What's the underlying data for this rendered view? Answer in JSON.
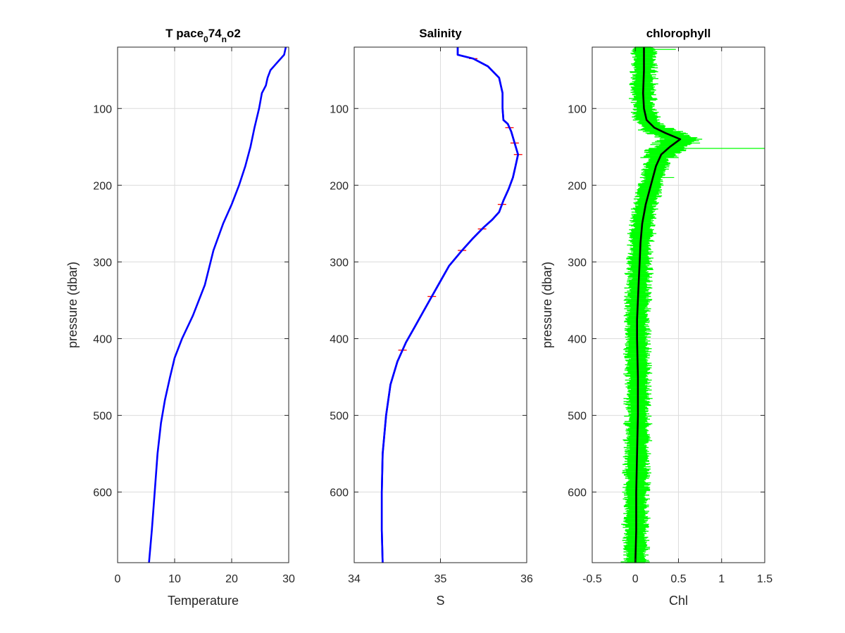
{
  "chart_data": [
    {
      "type": "line",
      "title_parts": [
        "T pace",
        "0",
        "74",
        "n",
        "o2"
      ],
      "xlabel": "Temperature",
      "ylabel": "pressure (dbar)",
      "xlim": [
        0,
        30
      ],
      "ylim": [
        20,
        692
      ],
      "y_reversed": true,
      "grid": true,
      "xticks": [
        0,
        10,
        20,
        30
      ],
      "yticks": [
        100,
        200,
        300,
        400,
        500,
        600
      ],
      "series": [
        {
          "color": "#0000ff",
          "points": [
            [
              29.5,
              20
            ],
            [
              29.2,
              30
            ],
            [
              28.0,
              40
            ],
            [
              26.8,
              50
            ],
            [
              26.3,
              60
            ],
            [
              26.0,
              70
            ],
            [
              25.3,
              80
            ],
            [
              24.8,
              100
            ],
            [
              24.0,
              125
            ],
            [
              23.3,
              150
            ],
            [
              22.4,
              175
            ],
            [
              21.3,
              200
            ],
            [
              20.0,
              225
            ],
            [
              18.5,
              250
            ],
            [
              16.8,
              285
            ],
            [
              15.3,
              330
            ],
            [
              13.2,
              370
            ],
            [
              11.3,
              400
            ],
            [
              10.0,
              425
            ],
            [
              9.2,
              450
            ],
            [
              8.3,
              480
            ],
            [
              7.6,
              510
            ],
            [
              7.0,
              550
            ],
            [
              6.5,
              600
            ],
            [
              6.0,
              650
            ],
            [
              5.5,
              692
            ]
          ]
        }
      ]
    },
    {
      "type": "line",
      "title": "Salinity",
      "xlabel": "S",
      "xlim": [
        34,
        36
      ],
      "ylim": [
        20,
        692
      ],
      "y_reversed": true,
      "grid": true,
      "xticks": [
        34,
        35,
        36
      ],
      "yticks": [
        100,
        200,
        300,
        400,
        500,
        600
      ],
      "series": [
        {
          "color": "#ff0000",
          "points": [
            [
              35.2,
              20
            ],
            [
              35.2,
              30
            ],
            [
              35.38,
              35
            ],
            [
              35.55,
              45
            ],
            [
              35.68,
              60
            ],
            [
              35.72,
              80
            ],
            [
              35.72,
              100
            ],
            [
              35.73,
              115
            ],
            [
              35.78,
              120
            ],
            [
              35.82,
              130
            ],
            [
              35.86,
              145
            ],
            [
              35.9,
              160
            ],
            [
              35.87,
              175
            ],
            [
              35.84,
              190
            ],
            [
              35.79,
              205
            ],
            [
              35.73,
              220
            ],
            [
              35.68,
              235
            ],
            [
              35.6,
              245
            ],
            [
              35.5,
              255
            ],
            [
              35.37,
              270
            ],
            [
              35.25,
              285
            ],
            [
              35.1,
              305
            ],
            [
              35.0,
              325
            ],
            [
              34.9,
              345
            ],
            [
              34.8,
              365
            ],
            [
              34.7,
              385
            ],
            [
              34.6,
              405
            ],
            [
              34.5,
              430
            ],
            [
              34.42,
              460
            ],
            [
              34.37,
              500
            ],
            [
              34.33,
              550
            ],
            [
              34.32,
              600
            ],
            [
              34.32,
              650
            ],
            [
              34.33,
              692
            ]
          ]
        },
        {
          "color": "#0000ff",
          "points": [
            [
              35.2,
              20
            ],
            [
              35.2,
              30
            ],
            [
              35.38,
              35
            ],
            [
              35.55,
              45
            ],
            [
              35.68,
              60
            ],
            [
              35.72,
              80
            ],
            [
              35.72,
              100
            ],
            [
              35.73,
              115
            ],
            [
              35.78,
              120
            ],
            [
              35.82,
              130
            ],
            [
              35.86,
              145
            ],
            [
              35.9,
              160
            ],
            [
              35.87,
              175
            ],
            [
              35.84,
              190
            ],
            [
              35.79,
              205
            ],
            [
              35.73,
              220
            ],
            [
              35.68,
              235
            ],
            [
              35.6,
              245
            ],
            [
              35.5,
              255
            ],
            [
              35.37,
              270
            ],
            [
              35.25,
              285
            ],
            [
              35.1,
              305
            ],
            [
              35.0,
              325
            ],
            [
              34.9,
              345
            ],
            [
              34.8,
              365
            ],
            [
              34.7,
              385
            ],
            [
              34.6,
              405
            ],
            [
              34.5,
              430
            ],
            [
              34.42,
              460
            ],
            [
              34.37,
              500
            ],
            [
              34.33,
              550
            ],
            [
              34.32,
              600
            ],
            [
              34.32,
              650
            ],
            [
              34.33,
              692
            ]
          ]
        }
      ]
    },
    {
      "type": "line",
      "title": "chlorophyll",
      "xlabel": "Chl",
      "ylabel": "pressure (dbar)",
      "xlim": [
        -0.5,
        1.5
      ],
      "ylim": [
        20,
        692
      ],
      "y_reversed": true,
      "grid": true,
      "xticks": [
        -0.5,
        0,
        0.5,
        1,
        1.5
      ],
      "yticks": [
        100,
        200,
        300,
        400,
        500,
        600
      ],
      "series": [
        {
          "color": "#00ff00",
          "band_halfwidth": 0.12,
          "spikes": [
            [
              23,
              0.47
            ],
            [
              152,
              1.5
            ],
            [
              145,
              0.75
            ],
            [
              190,
              0.45
            ]
          ],
          "points": [
            [
              0.1,
              20
            ],
            [
              0.1,
              50
            ],
            [
              0.09,
              80
            ],
            [
              0.1,
              100
            ],
            [
              0.13,
              115
            ],
            [
              0.22,
              125
            ],
            [
              0.35,
              132
            ],
            [
              0.52,
              140
            ],
            [
              0.4,
              150
            ],
            [
              0.3,
              160
            ],
            [
              0.24,
              175
            ],
            [
              0.18,
              200
            ],
            [
              0.12,
              225
            ],
            [
              0.08,
              250
            ],
            [
              0.06,
              275
            ],
            [
              0.05,
              300
            ],
            [
              0.04,
              325
            ],
            [
              0.03,
              350
            ],
            [
              0.02,
              375
            ],
            [
              0.02,
              400
            ],
            [
              0.03,
              450
            ],
            [
              0.03,
              500
            ],
            [
              0.02,
              550
            ],
            [
              0.01,
              600
            ],
            [
              0.01,
              650
            ],
            [
              0.0,
              692
            ]
          ]
        },
        {
          "color": "#000000",
          "points": [
            [
              0.1,
              20
            ],
            [
              0.1,
              50
            ],
            [
              0.09,
              80
            ],
            [
              0.1,
              100
            ],
            [
              0.13,
              115
            ],
            [
              0.22,
              125
            ],
            [
              0.35,
              132
            ],
            [
              0.52,
              140
            ],
            [
              0.4,
              150
            ],
            [
              0.3,
              160
            ],
            [
              0.24,
              175
            ],
            [
              0.18,
              200
            ],
            [
              0.12,
              225
            ],
            [
              0.08,
              250
            ],
            [
              0.06,
              275
            ],
            [
              0.05,
              300
            ],
            [
              0.04,
              325
            ],
            [
              0.03,
              350
            ],
            [
              0.02,
              375
            ],
            [
              0.02,
              400
            ],
            [
              0.03,
              450
            ],
            [
              0.03,
              500
            ],
            [
              0.02,
              550
            ],
            [
              0.01,
              600
            ],
            [
              0.01,
              650
            ],
            [
              0.0,
              692
            ]
          ]
        }
      ]
    }
  ]
}
